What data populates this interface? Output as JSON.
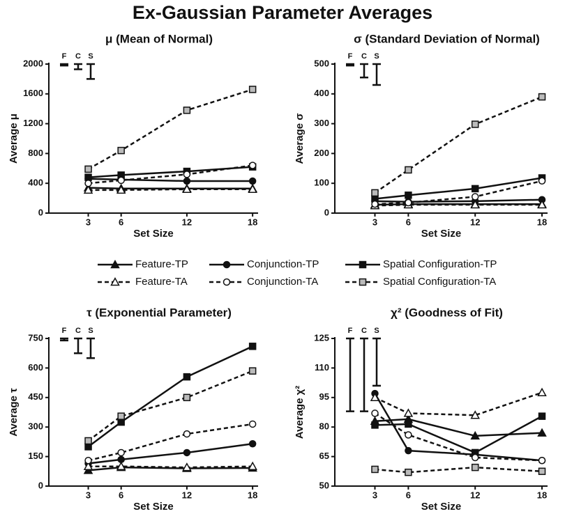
{
  "title": "Ex-Gaussian Parameter Averages",
  "legend": [
    {
      "name": "Feature-TP",
      "marker": "triangle",
      "dash": false,
      "color": "#111111",
      "fill": "#111111"
    },
    {
      "name": "Conjunction-TP",
      "marker": "circle",
      "dash": false,
      "color": "#111111",
      "fill": "#111111"
    },
    {
      "name": "Spatial Configuration-TP",
      "marker": "square",
      "dash": false,
      "color": "#111111",
      "fill": "#111111"
    },
    {
      "name": "Feature-TA",
      "marker": "triangle",
      "dash": true,
      "color": "#111111",
      "fill": "#ffffff"
    },
    {
      "name": "Conjunction-TA",
      "marker": "circle",
      "dash": true,
      "color": "#111111",
      "fill": "#ffffff"
    },
    {
      "name": "Spatial Configuration-TA",
      "marker": "square",
      "dash": true,
      "color": "#111111",
      "fill": "#bbbbbb"
    }
  ],
  "chart_data": [
    {
      "type": "line",
      "title": "μ (Mean of Normal)",
      "x_label": "Set Size",
      "y_label": "Average μ",
      "x": [
        3,
        6,
        12,
        18
      ],
      "xlim": [
        -0.6,
        18.5
      ],
      "xticks": [
        3,
        6,
        12,
        18
      ],
      "ylim": [
        0,
        2000
      ],
      "yticks": [
        0,
        400,
        800,
        1200,
        1600,
        2000
      ],
      "error_bars": {
        "labels": [
          "F",
          "C",
          "S"
        ],
        "values": [
          20,
          70,
          200
        ]
      },
      "series": [
        {
          "values": [
            340,
            330,
            330,
            330
          ]
        },
        {
          "values": [
            460,
            450,
            430,
            430
          ]
        },
        {
          "values": [
            480,
            510,
            560,
            620
          ]
        },
        {
          "values": [
            310,
            310,
            320,
            320
          ]
        },
        {
          "values": [
            400,
            440,
            520,
            640
          ]
        },
        {
          "values": [
            590,
            840,
            1380,
            1660
          ]
        }
      ]
    },
    {
      "type": "line",
      "title": "σ (Standard Deviation of Normal)",
      "x_label": "Set Size",
      "y_label": "Average σ",
      "x": [
        3,
        6,
        12,
        18
      ],
      "xlim": [
        -0.6,
        18.5
      ],
      "xticks": [
        3,
        6,
        12,
        18
      ],
      "ylim": [
        0,
        500
      ],
      "yticks": [
        0,
        100,
        200,
        300,
        400,
        500
      ],
      "error_bars": {
        "labels": [
          "F",
          "C",
          "S"
        ],
        "values": [
          5,
          45,
          70
        ]
      },
      "series": [
        {
          "values": [
            28,
            30,
            30,
            30
          ]
        },
        {
          "values": [
            40,
            38,
            40,
            45
          ]
        },
        {
          "values": [
            48,
            60,
            82,
            118
          ]
        },
        {
          "values": [
            25,
            28,
            28,
            28
          ]
        },
        {
          "values": [
            30,
            35,
            55,
            108
          ]
        },
        {
          "values": [
            68,
            145,
            298,
            390
          ]
        }
      ]
    },
    {
      "type": "line",
      "title": "τ (Exponential Parameter)",
      "x_label": "Set Size",
      "y_label": "Average τ",
      "x": [
        3,
        6,
        12,
        18
      ],
      "xlim": [
        -0.6,
        18.5
      ],
      "xticks": [
        3,
        6,
        12,
        18
      ],
      "ylim": [
        0,
        750
      ],
      "yticks": [
        0,
        150,
        300,
        450,
        600,
        750
      ],
      "error_bars": {
        "labels": [
          "F",
          "C",
          "S"
        ],
        "values": [
          10,
          75,
          100
        ]
      },
      "series": [
        {
          "values": [
            80,
            95,
            90,
            92
          ]
        },
        {
          "values": [
            115,
            135,
            170,
            215
          ]
        },
        {
          "values": [
            200,
            325,
            555,
            710
          ]
        },
        {
          "values": [
            100,
            100,
            95,
            100
          ]
        },
        {
          "values": [
            130,
            170,
            265,
            315
          ]
        },
        {
          "values": [
            230,
            355,
            450,
            585
          ]
        }
      ]
    },
    {
      "type": "line",
      "title": "χ² (Goodness of Fit)",
      "x_label": "Set Size",
      "y_label": "Average χ²",
      "x": [
        3,
        6,
        12,
        18
      ],
      "xlim": [
        -0.6,
        18.5
      ],
      "xticks": [
        3,
        6,
        12,
        18
      ],
      "ylim": [
        50,
        125
      ],
      "yticks": [
        50,
        65,
        80,
        95,
        110,
        125
      ],
      "error_bars": {
        "labels": [
          "F",
          "C",
          "S"
        ],
        "values": [
          37,
          37,
          24
        ]
      },
      "series": [
        {
          "values": [
            83,
            84,
            75.5,
            77
          ]
        },
        {
          "values": [
            97,
            68,
            66,
            63
          ]
        },
        {
          "values": [
            81,
            81.5,
            67,
            85.5
          ]
        },
        {
          "values": [
            95,
            87,
            86,
            97.5
          ]
        },
        {
          "values": [
            87,
            76,
            64.5,
            63
          ]
        },
        {
          "values": [
            58.5,
            57,
            59.5,
            57.5
          ]
        }
      ]
    }
  ]
}
